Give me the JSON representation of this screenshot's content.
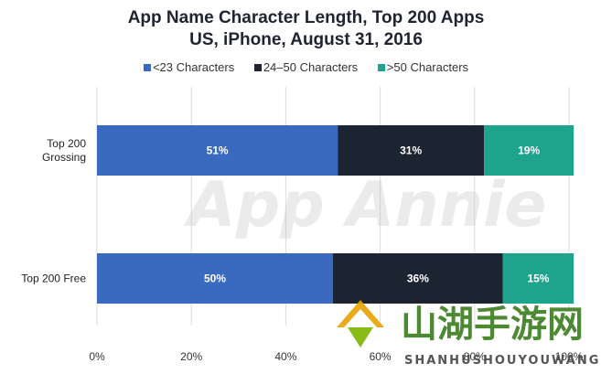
{
  "chart_data": {
    "type": "bar",
    "orientation": "horizontal",
    "stacked": true,
    "title": "App Name Character Length, Top 200 Apps",
    "subtitle": "US, iPhone, August 31, 2016",
    "categories": [
      "Top 200\nGrossing",
      "Top 200 Free"
    ],
    "series": [
      {
        "name": "<23 Characters",
        "values": [
          51,
          50
        ],
        "labels": [
          "51%",
          "50%"
        ],
        "color": "#3a6ac0"
      },
      {
        "name": "24–50 Characters",
        "values": [
          31,
          36
        ],
        "labels": [
          "31%",
          "36%"
        ],
        "color": "#1c2331"
      },
      {
        "name": ">50 Characters",
        "values": [
          19,
          15
        ],
        "labels": [
          "19%",
          "15%"
        ],
        "color": "#1ea38d"
      }
    ],
    "xlim": [
      0,
      100
    ],
    "xticks": [
      "0%",
      "20%",
      "40%",
      "60%",
      "80%",
      "100%"
    ],
    "grid": true,
    "legend_position": "top"
  },
  "watermark": "App Annie",
  "site_logo": {
    "text": "山湖手游网",
    "subtext": "SHANHUSHOUYOUWANG"
  }
}
